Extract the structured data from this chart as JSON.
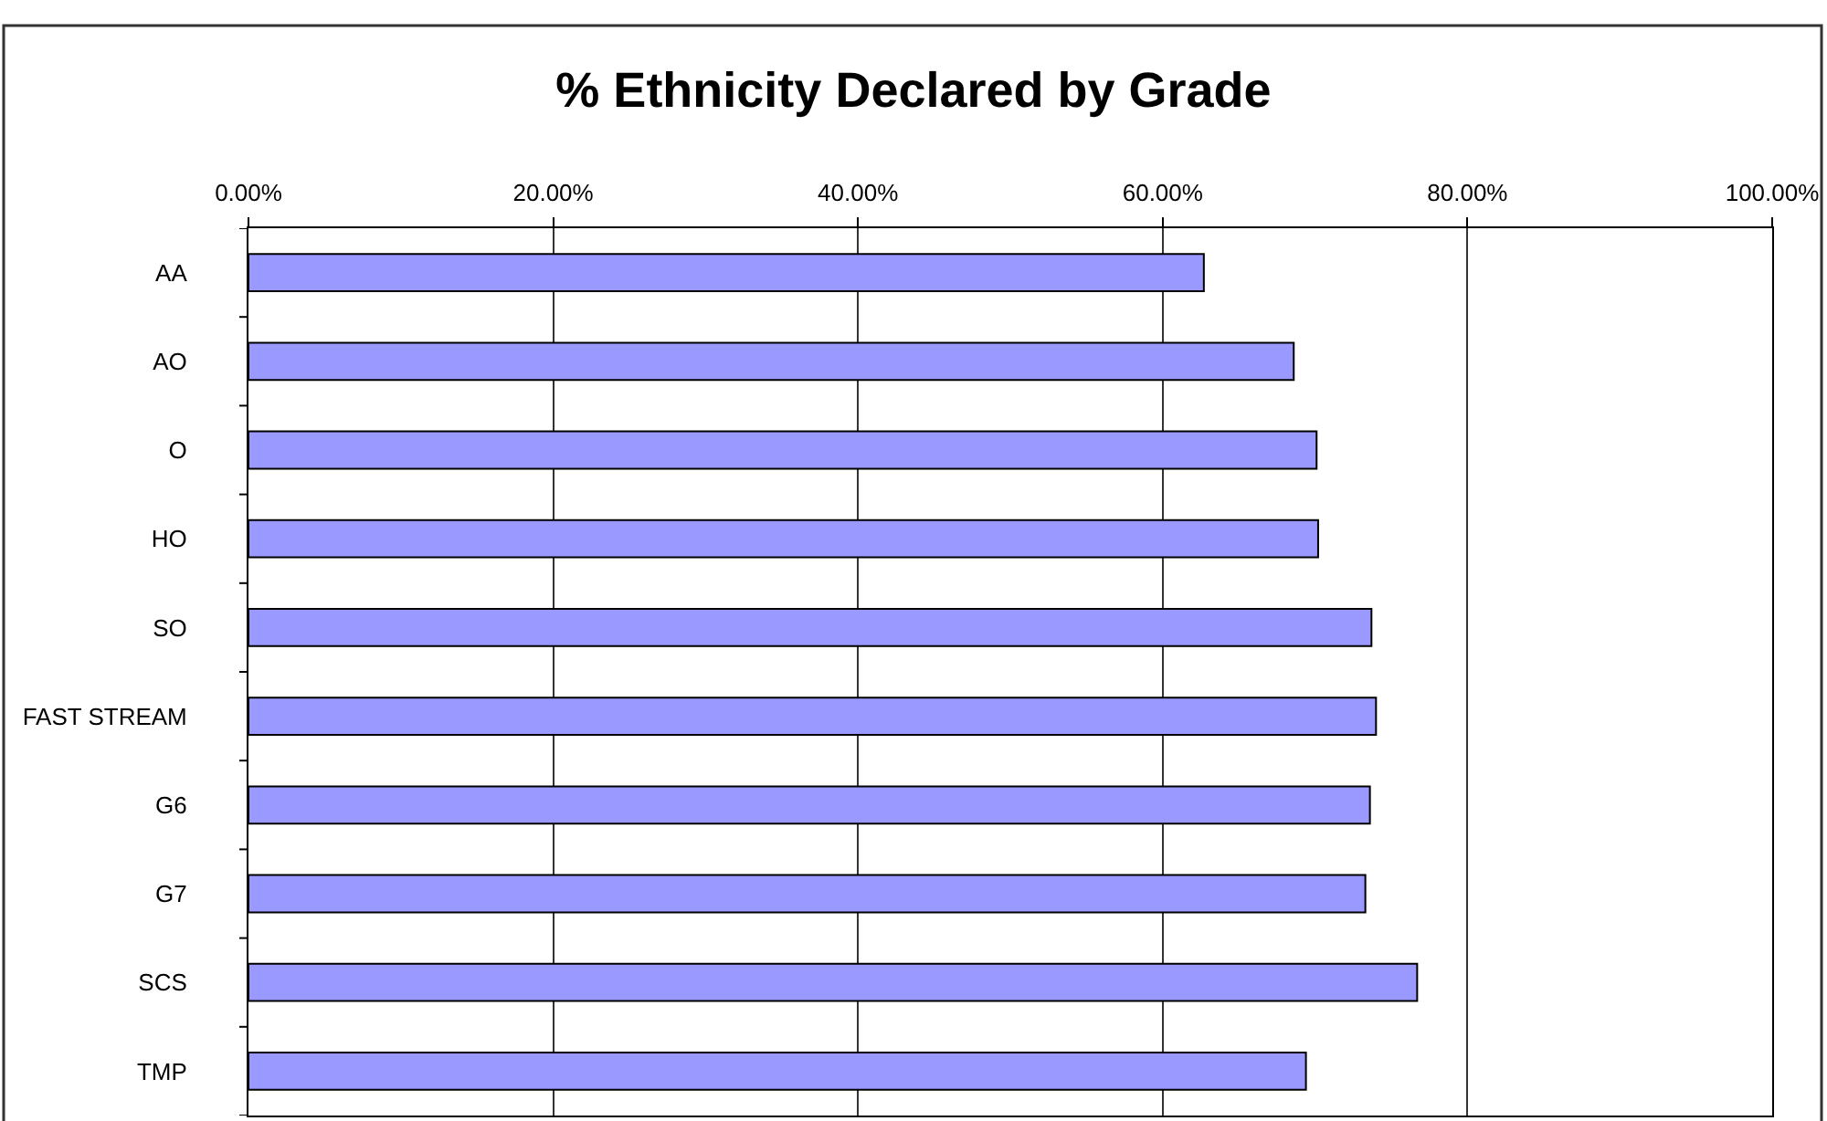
{
  "chart_data": {
    "type": "bar",
    "orientation": "horizontal",
    "title": "% Ethnicity Declared by Grade",
    "categories": [
      "AA",
      "AO",
      "O",
      "HO",
      "SO",
      "FAST STREAM",
      "G6",
      "G7",
      "SCS",
      "TMP"
    ],
    "values": [
      62.7,
      68.6,
      70.1,
      70.2,
      73.7,
      74.0,
      73.6,
      73.3,
      76.7,
      69.4
    ],
    "color": "#9999ff",
    "xlim": [
      0,
      100
    ],
    "xticks": [
      {
        "value": 0,
        "label": "0.00%"
      },
      {
        "value": 20,
        "label": "20.00%"
      },
      {
        "value": 40,
        "label": "40.00%"
      },
      {
        "value": 60,
        "label": "60.00%"
      },
      {
        "value": 80,
        "label": "80.00%"
      },
      {
        "value": 100,
        "label": "100.00%"
      }
    ],
    "grid": "x"
  }
}
